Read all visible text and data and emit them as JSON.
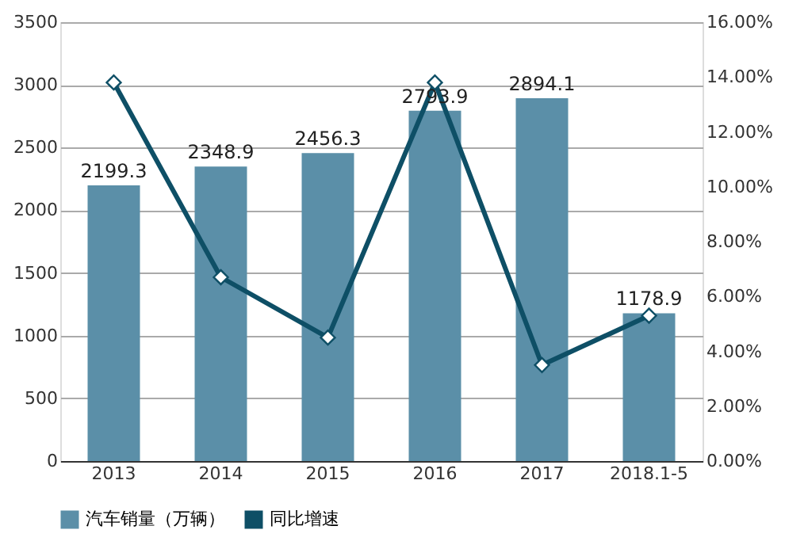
{
  "chart_data": {
    "type": "bar",
    "categories": [
      "2013",
      "2014",
      "2015",
      "2016",
      "2017",
      "2018.1-5"
    ],
    "series": [
      {
        "name": "汽车销量（万辆）",
        "color": "#5b8fa8",
        "values": [
          2199.3,
          2348.9,
          2456.3,
          2793.9,
          2894.1,
          1178.9
        ],
        "value_labels": [
          "2199.3",
          "2348.9",
          "2456.3",
          "2793.9",
          "2894.1",
          "1178.9"
        ]
      },
      {
        "name": "同比增速",
        "type": "line",
        "axis": "y2",
        "color": "#0e4f66",
        "marker": "diamond",
        "values": [
          13.8,
          6.7,
          4.5,
          13.8,
          3.5,
          5.3
        ]
      }
    ],
    "ylim": [
      0,
      3500
    ],
    "yticks": [
      0,
      500,
      1000,
      1500,
      2000,
      2500,
      3000,
      3500
    ],
    "y2lim": [
      0,
      16
    ],
    "y2ticks": [
      {
        "value": 0,
        "label": "0.00%"
      },
      {
        "value": 2,
        "label": "2.00%"
      },
      {
        "value": 4,
        "label": "4.00%"
      },
      {
        "value": 6,
        "label": "6.00%"
      },
      {
        "value": 8,
        "label": "8.00%"
      },
      {
        "value": 10,
        "label": "10.00%"
      },
      {
        "value": 12,
        "label": "12.00%"
      },
      {
        "value": 14,
        "label": "14.00%"
      },
      {
        "value": 16,
        "label": "16.00%"
      }
    ],
    "grid": "y",
    "legend": "bottom"
  }
}
